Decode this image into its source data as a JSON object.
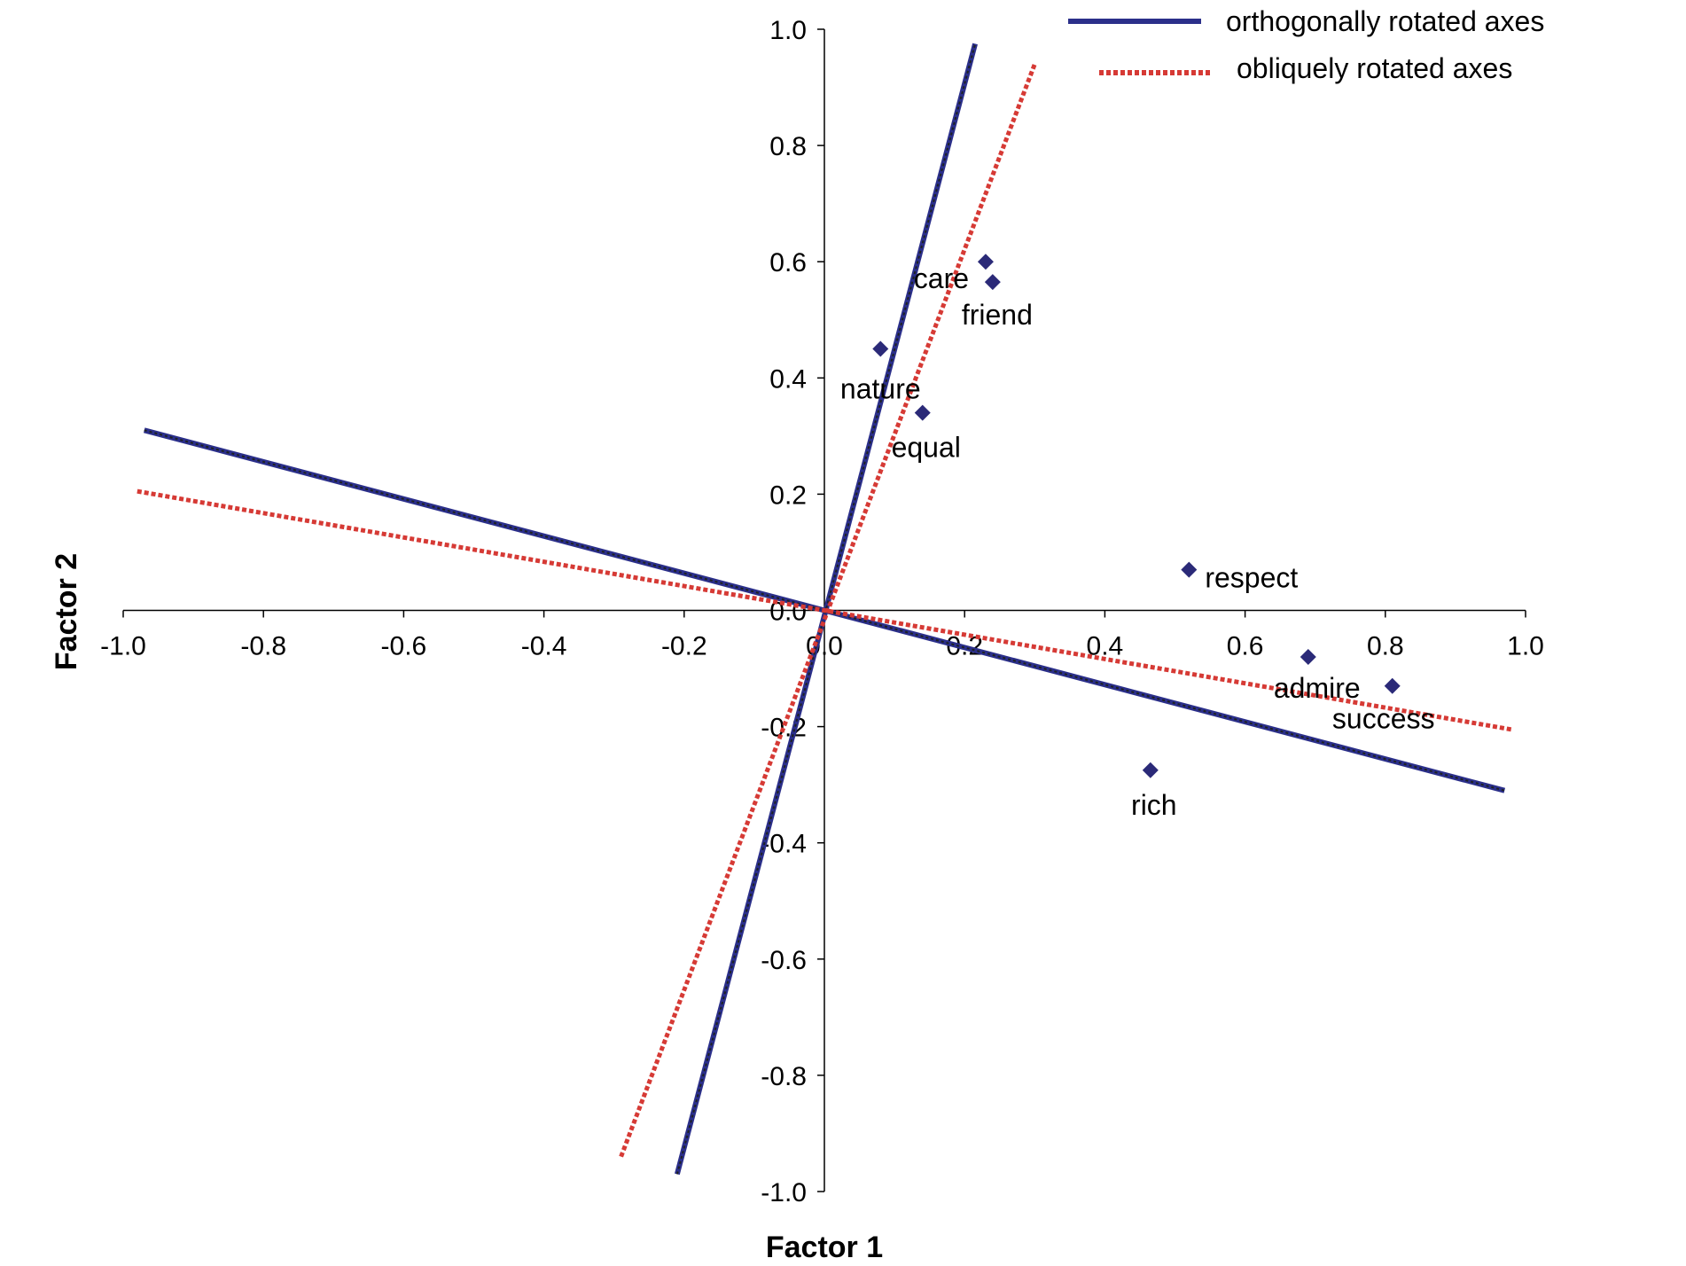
{
  "chart_data": {
    "type": "scatter",
    "title": "",
    "xlabel": "Factor 1",
    "ylabel": "Factor 2",
    "xlim": [
      -1.0,
      1.0
    ],
    "ylim": [
      -1.0,
      1.0
    ],
    "x_ticks": [
      "-1.0",
      "-0.8",
      "-0.6",
      "-0.4",
      "-0.2",
      "0.0",
      "0.2",
      "0.4",
      "0.6",
      "0.8",
      "1.0"
    ],
    "y_ticks": [
      "1.0",
      "0.8",
      "0.6",
      "0.4",
      "0.2",
      "0.0",
      "-0.2",
      "-0.4",
      "-0.6",
      "-0.8",
      "-1.0"
    ],
    "grid": false,
    "legend_position": "top-right",
    "points": [
      {
        "label": "care",
        "x": 0.23,
        "y": 0.6
      },
      {
        "label": "friend",
        "x": 0.24,
        "y": 0.565
      },
      {
        "label": "nature",
        "x": 0.08,
        "y": 0.45
      },
      {
        "label": "equal",
        "x": 0.14,
        "y": 0.34
      },
      {
        "label": "respect",
        "x": 0.52,
        "y": 0.07
      },
      {
        "label": "admire",
        "x": 0.69,
        "y": -0.08
      },
      {
        "label": "success",
        "x": 0.81,
        "y": -0.13
      },
      {
        "label": "rich",
        "x": 0.465,
        "y": -0.275
      }
    ],
    "series": [
      {
        "name": "orthogonally rotated axes",
        "color": "#2b2f8a",
        "style": "solid",
        "lines": [
          {
            "from": [
              -0.97,
              0.31
            ],
            "to": [
              0.97,
              -0.31
            ]
          },
          {
            "from": [
              -0.21,
              -0.97
            ],
            "to": [
              0.215,
              0.975
            ]
          }
        ]
      },
      {
        "name": "obliquely rotated axes",
        "color": "#d63a35",
        "style": "dotted",
        "lines": [
          {
            "from": [
              -0.98,
              0.205
            ],
            "to": [
              0.98,
              -0.205
            ]
          },
          {
            "from": [
              -0.29,
              -0.94
            ],
            "to": [
              0.3,
              0.94
            ]
          }
        ]
      }
    ],
    "point_color": "#2b2a78"
  }
}
